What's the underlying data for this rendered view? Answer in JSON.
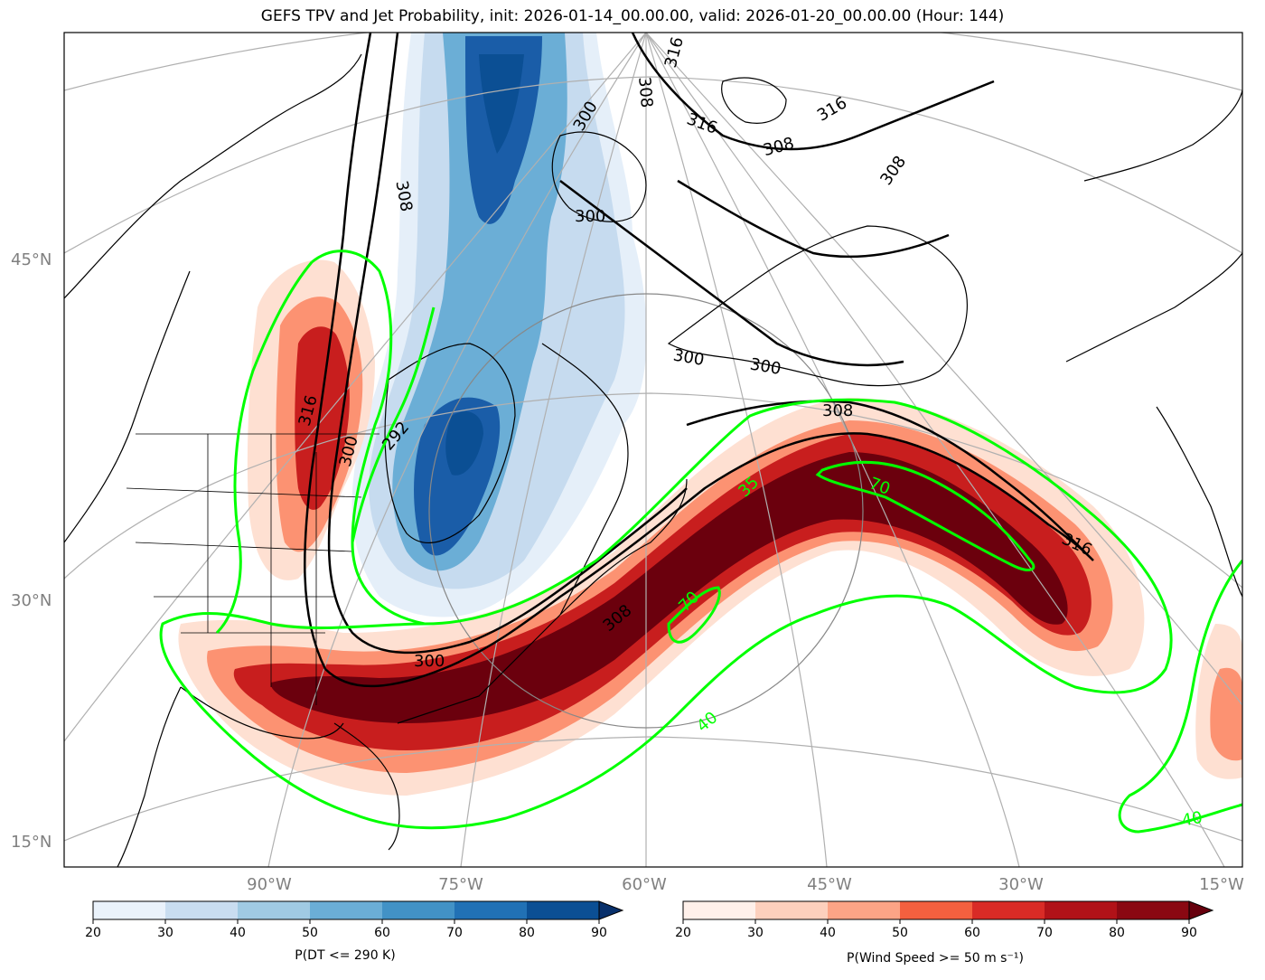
{
  "title": "GEFS TPV and Jet Probability, init: 2026-01-14_00.00.00, valid: 2026-01-20_00.00.00 (Hour: 144)",
  "lat_labels": [
    "45°N",
    "30°N",
    "15°N"
  ],
  "lon_labels": [
    "90°W",
    "75°W",
    "60°W",
    "45°W",
    "30°W",
    "15°W"
  ],
  "contour_labels": {
    "black": [
      "316",
      "300",
      "292",
      "300",
      "308",
      "316",
      "316",
      "308",
      "308",
      "300",
      "300",
      "316",
      "308",
      "300",
      "308",
      "316",
      "300",
      "308"
    ],
    "green": [
      "35",
      "70",
      "70",
      "40",
      "40"
    ]
  },
  "colorbar_left": {
    "label": "P(DT <= 290 K)",
    "ticks": [
      "20",
      "30",
      "40",
      "50",
      "60",
      "70",
      "80",
      "90"
    ],
    "colors": [
      "#eaf2fb",
      "#c9ddf0",
      "#a0cae3",
      "#6baed6",
      "#4292c6",
      "#2171b5",
      "#0b4f94"
    ],
    "extend_color": "#08306b"
  },
  "colorbar_right": {
    "label": "P(Wind Speed >= 50 m s⁻¹)",
    "ticks": [
      "20",
      "30",
      "40",
      "50",
      "60",
      "70",
      "80",
      "90"
    ],
    "colors": [
      "#fff0ea",
      "#fdd0bd",
      "#fca486",
      "#f4603f",
      "#d92b26",
      "#b11218",
      "#8a0812"
    ],
    "extend_color": "#67000d"
  },
  "colors": {
    "wind_high": "#6b000d",
    "wind_mid": "#c81e1e",
    "wind_low": "#fc9272",
    "wind_faint": "#fee0d2",
    "tpv_high": "#1a5da8",
    "tpv_mid": "#6baed6",
    "tpv_low": "#c6dbef",
    "tpv_faint": "#e5eff9",
    "green_contour": "#00ff00",
    "grid": "#b0b0b0"
  }
}
